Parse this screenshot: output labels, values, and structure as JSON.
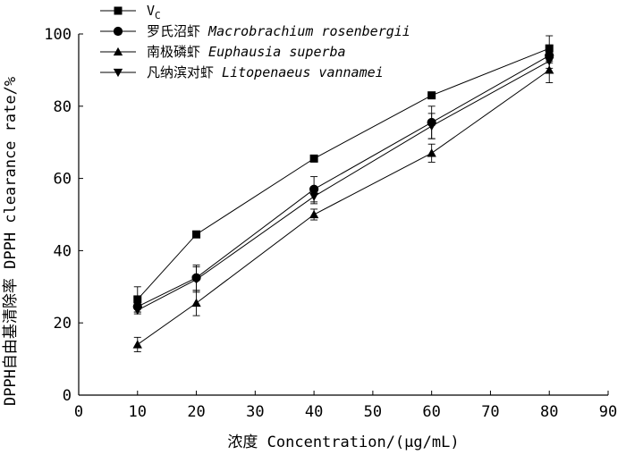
{
  "chart_data": {
    "type": "line",
    "title": "",
    "xlabel": "浓度 Concentration/(μg/mL)",
    "ylabel": "DPPH自由基清除率 DPPH clearance rate/%",
    "xlim": [
      0,
      90
    ],
    "ylim": [
      0,
      100
    ],
    "x_ticks": [
      "0",
      "10",
      "20",
      "30",
      "40",
      "50",
      "60",
      "70",
      "80",
      "90"
    ],
    "y_ticks": [
      "0",
      "20",
      "40",
      "60",
      "80",
      "100"
    ],
    "x": [
      10,
      20,
      40,
      60,
      80
    ],
    "legend_position": "top-left",
    "series": [
      {
        "name": "VC",
        "name_main": "V",
        "name_sub": "C",
        "name_latin": "",
        "marker": "square",
        "values": [
          26.5,
          44.5,
          65.5,
          83,
          96
        ],
        "errors": [
          3.5,
          0,
          0,
          0,
          3.5
        ]
      },
      {
        "name": "罗氏沼虾 Macrobrachium rosenbergii",
        "name_main": "罗氏沼虾",
        "name_sub": "",
        "name_latin": "Macrobrachium rosenbergii",
        "marker": "circle",
        "values": [
          24.5,
          32.5,
          57,
          75.5,
          94
        ],
        "errors": [
          1.5,
          3.5,
          3.5,
          4.5,
          2
        ]
      },
      {
        "name": "南极磷虾 Euphausia superba",
        "name_main": "南极磷虾",
        "name_sub": "",
        "name_latin": "Euphausia superba",
        "marker": "triangle-up",
        "values": [
          14,
          25.5,
          50,
          67,
          90
        ],
        "errors": [
          2,
          3.5,
          1.5,
          2.5,
          3.5
        ]
      },
      {
        "name": "凡纳滨对虾 Litopenaeus vannamei",
        "name_main": "凡纳滨对虾",
        "name_sub": "",
        "name_latin": "Litopenaeus vannamei",
        "marker": "triangle-down",
        "values": [
          23.5,
          32,
          55,
          74.5,
          92.5
        ],
        "errors": [
          1,
          3.5,
          2,
          3.5,
          2
        ]
      }
    ]
  }
}
